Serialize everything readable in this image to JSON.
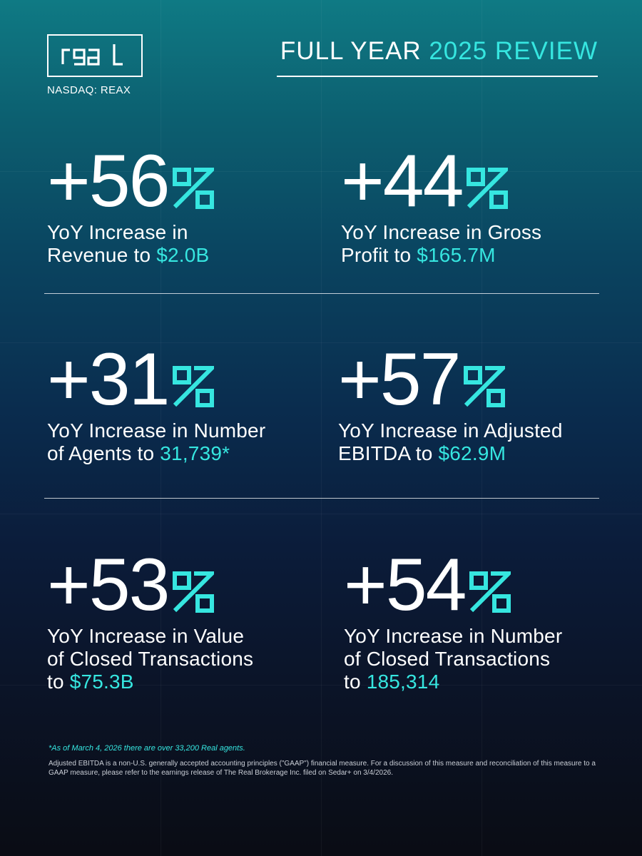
{
  "brand": {
    "logo_text": "real",
    "ticker": "NASDAQ: REAX"
  },
  "header": {
    "title_prefix": "FULL YEAR ",
    "title_accent": "2025 REVIEW"
  },
  "colors": {
    "accent": "#36e6e0",
    "text": "#ffffff"
  },
  "stats": [
    {
      "value": "+56",
      "line1": "YoY Increase in",
      "line2_prefix": "Revenue to ",
      "highlight": "$2.0B",
      "line3": ""
    },
    {
      "value": "+44",
      "line1": "YoY Increase in Gross",
      "line2_prefix": "Profit to ",
      "highlight": "$165.7M",
      "line3": ""
    },
    {
      "value": "+31",
      "line1": "YoY Increase in Number",
      "line2_prefix": "of Agents to ",
      "highlight": "31,739*",
      "line3": ""
    },
    {
      "value": "+57",
      "line1": "YoY Increase in Adjusted",
      "line2_prefix": "EBITDA to ",
      "highlight": "$62.9M",
      "line3": ""
    },
    {
      "value": "+53",
      "line1": "YoY Increase in Value",
      "line2_prefix": "of Closed Transactions",
      "highlight": "",
      "line3_prefix": "to ",
      "line3_highlight": "$75.3B"
    },
    {
      "value": "+54",
      "line1": "YoY Increase in Number",
      "line2_prefix": "of Closed Transactions",
      "highlight": "",
      "line3_prefix": "to ",
      "line3_highlight": "185,314"
    }
  ],
  "footnote": "*As of March 4, 2026 there are over 33,200 Real agents.",
  "disclaimer": "Adjusted EBITDA is a non-U.S. generally accepted accounting principles (\"GAAP\") financial measure. For a discussion of this measure and reconciliation of this measure to a GAAP measure, please refer to the earnings release of The Real Brokerage Inc. filed on Sedar+ on 3/4/2026."
}
